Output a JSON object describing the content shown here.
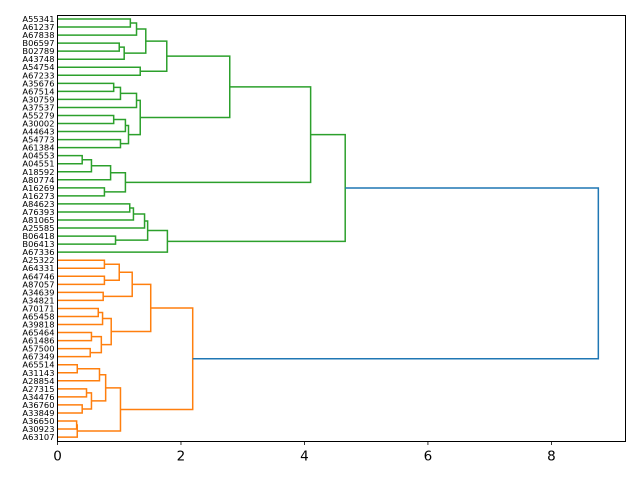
{
  "chart_data": {
    "type": "dendrogram",
    "title": "",
    "xlabel": "",
    "ylabel": "",
    "orientation": "left",
    "xlim": [
      0,
      9.2
    ],
    "xticks": [
      0,
      2,
      4,
      6,
      8
    ],
    "xtick_labels": [
      "0",
      "2",
      "4",
      "6",
      "8"
    ],
    "grid": false,
    "colors": {
      "cluster_green": "#2ca02c",
      "cluster_orange": "#ff7f0e",
      "root": "#1f77b4"
    },
    "tree": {
      "h": 8.76,
      "color": "#1f77b4",
      "c": [
        {
          "h": 4.66,
          "color": "#2ca02c",
          "c": [
            {
              "h": 4.1,
              "c": [
                {
                  "h": 2.79,
                  "c": [
                    {
                      "h": 1.77,
                      "c": [
                        {
                          "h": 1.43,
                          "c": [
                            {
                              "h": 1.28,
                              "c": [
                                {
                                  "h": 1.18,
                                  "c": [
                                    "A55341",
                                    "A61237"
                                  ]
                                },
                                "A67838"
                              ]
                            },
                            {
                              "h": 1.08,
                              "c": [
                                {
                                  "h": 1.0,
                                  "c": [
                                    "B06597",
                                    "B02789"
                                  ]
                                },
                                "A43748"
                              ]
                            }
                          ]
                        },
                        {
                          "h": 1.34,
                          "c": [
                            "A54754",
                            "A67233"
                          ]
                        }
                      ]
                    },
                    {
                      "h": 1.34,
                      "c": [
                        {
                          "h": 1.28,
                          "c": [
                            {
                              "h": 1.02,
                              "c": [
                                {
                                  "h": 0.91,
                                  "c": [
                                    "A35676",
                                    "A67514"
                                  ]
                                },
                                "A30759"
                              ]
                            },
                            "A37537"
                          ]
                        },
                        {
                          "h": 1.15,
                          "c": [
                            {
                              "h": 1.1,
                              "c": [
                                {
                                  "h": 0.91,
                                  "c": [
                                    "A55279",
                                    "A30002"
                                  ]
                                },
                                "A44643"
                              ]
                            },
                            {
                              "h": 1.02,
                              "c": [
                                "A54773",
                                "A61384"
                              ]
                            }
                          ]
                        }
                      ]
                    }
                  ]
                },
                {
                  "h": 1.1,
                  "c": [
                    {
                      "h": 0.86,
                      "c": [
                        {
                          "h": 0.55,
                          "c": [
                            {
                              "h": 0.4,
                              "c": [
                                "A04553",
                                "A04551"
                              ]
                            },
                            "A18592"
                          ]
                        },
                        "A80774"
                      ]
                    },
                    {
                      "h": 0.76,
                      "c": [
                        "A16269",
                        "A16273"
                      ]
                    }
                  ]
                }
              ]
            },
            {
              "h": 1.78,
              "c": [
                {
                  "h": 1.46,
                  "c": [
                    {
                      "h": 1.41,
                      "c": [
                        {
                          "h": 1.23,
                          "c": [
                            {
                              "h": 1.17,
                              "c": [
                                "A84623",
                                "A76393"
                              ]
                            },
                            "A81065"
                          ]
                        },
                        "A25585"
                      ]
                    },
                    {
                      "h": 0.94,
                      "c": [
                        "B06418",
                        "B06413"
                      ]
                    }
                  ]
                },
                "A67336"
              ]
            }
          ]
        },
        {
          "h": 2.19,
          "color": "#ff7f0e",
          "c": [
            {
              "h": 1.51,
              "c": [
                {
                  "h": 1.21,
                  "c": [
                    {
                      "h": 1.0,
                      "c": [
                        {
                          "h": 0.76,
                          "c": [
                            "A25322",
                            "A64331"
                          ]
                        },
                        {
                          "h": 0.76,
                          "c": [
                            "A64746",
                            "A87057"
                          ]
                        }
                      ]
                    },
                    {
                      "h": 0.74,
                      "c": [
                        "A34639",
                        "A34821"
                      ]
                    }
                  ]
                },
                {
                  "h": 0.87,
                  "c": [
                    {
                      "h": 0.73,
                      "c": [
                        {
                          "h": 0.66,
                          "c": [
                            "A70171",
                            "A65458"
                          ]
                        },
                        "A39818"
                      ]
                    },
                    {
                      "h": 0.71,
                      "c": [
                        {
                          "h": 0.55,
                          "c": [
                            "A65464",
                            "A61486"
                          ]
                        },
                        {
                          "h": 0.53,
                          "c": [
                            "A57500",
                            "A67349"
                          ]
                        }
                      ]
                    }
                  ]
                }
              ]
            },
            {
              "h": 1.02,
              "c": [
                {
                  "h": 0.78,
                  "c": [
                    {
                      "h": 0.68,
                      "c": [
                        {
                          "h": 0.32,
                          "c": [
                            "A65514",
                            "A31143"
                          ]
                        },
                        "A28854"
                      ]
                    },
                    {
                      "h": 0.55,
                      "c": [
                        {
                          "h": 0.47,
                          "c": [
                            "A27315",
                            "A34476"
                          ]
                        },
                        {
                          "h": 0.4,
                          "c": [
                            "A36760",
                            "A33849"
                          ]
                        }
                      ]
                    }
                  ]
                },
                {
                  "h": 0.32,
                  "c": [
                    {
                      "h": 0.31,
                      "c": [
                        "A36650",
                        "A30923"
                      ]
                    },
                    "A63107"
                  ]
                }
              ]
            }
          ]
        }
      ]
    }
  }
}
